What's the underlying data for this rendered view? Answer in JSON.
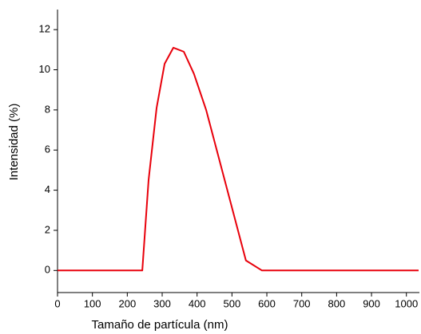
{
  "chart_data": {
    "type": "line",
    "x_label": "Tamaño de partícula (nm)",
    "y_label": "Intensidad (%)",
    "x": [
      0,
      243,
      261,
      284,
      307,
      332,
      362,
      391,
      426,
      540,
      586,
      1035
    ],
    "series": [
      {
        "name": "Intensidad",
        "color": "#e8000b",
        "values": [
          0,
          0,
          4.5,
          8.1,
          10.3,
          11.1,
          10.9,
          9.8,
          8.0,
          0.5,
          0,
          0
        ]
      }
    ],
    "xlim": [
      0,
      1035
    ],
    "ylim": [
      -1.1,
      13
    ],
    "xticks": [
      0,
      100,
      200,
      300,
      400,
      500,
      600,
      700,
      800,
      900,
      1000
    ],
    "yticks": [
      0,
      2,
      4,
      6,
      8,
      10,
      12
    ]
  }
}
